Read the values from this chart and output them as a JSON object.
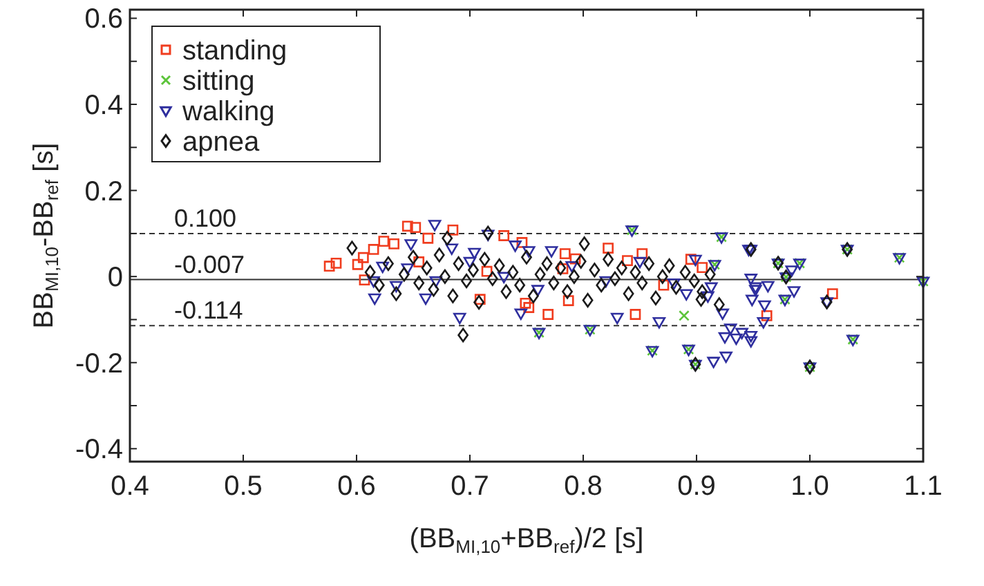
{
  "chart_data": {
    "type": "scatter",
    "xlabel": "(BB$_{MI,10}$+BB$_{ref}$)/2 [s]",
    "ylabel": "BB$_{MI,10}$-BB$_{ref}$ [s]",
    "xlim": [
      0.4,
      1.1
    ],
    "ylim": [
      -0.43,
      0.62
    ],
    "xticks": [
      0.4,
      0.5,
      0.6,
      0.7,
      0.8,
      0.9,
      {
        "value": 1.0,
        "label": "1.0"
      },
      1.1
    ],
    "yticks": [
      -0.4,
      {
        "value": -0.3,
        "label": null
      },
      -0.2,
      {
        "value": -0.1,
        "label": null
      },
      0,
      {
        "value": 0.1,
        "label": null
      },
      0.2,
      {
        "value": 0.3,
        "label": null
      },
      0.4,
      {
        "value": 0.5,
        "label": null
      },
      0.6
    ],
    "grid": false,
    "legend": "top left",
    "ref_lines": [
      {
        "axis": "y",
        "value": 0.1,
        "label": "0.100",
        "line_style": "dashed"
      },
      {
        "axis": "y",
        "value": -0.007,
        "label": "-0.007",
        "line_style": "solid"
      },
      {
        "axis": "y",
        "value": -0.114,
        "label": "-0.114",
        "line_style": "dashed"
      }
    ],
    "series": [
      {
        "name": "standing",
        "color": "#f03c1e",
        "marker": "square",
        "x": [
          0.576,
          0.582,
          0.606,
          0.615,
          0.624,
          0.633,
          0.645,
          0.652,
          0.685,
          0.73,
          0.746,
          0.601,
          0.607,
          0.663,
          0.655,
          0.715,
          0.709,
          0.749,
          0.752,
          0.784,
          0.793,
          0.822,
          0.839,
          0.852,
          0.769,
          0.787,
          0.846,
          0.871,
          0.895,
          0.905,
          0.782,
          1.02,
          0.962
        ],
        "values": [
          0.024,
          0.031,
          0.044,
          0.063,
          0.082,
          0.076,
          0.117,
          0.114,
          0.108,
          0.095,
          0.079,
          0.028,
          -0.008,
          0.089,
          0.034,
          0.012,
          -0.053,
          -0.062,
          -0.072,
          0.053,
          0.041,
          0.066,
          0.037,
          0.053,
          -0.088,
          -0.056,
          -0.088,
          -0.02,
          0.04,
          0.021,
          0.018,
          -0.04,
          -0.091
        ]
      },
      {
        "name": "sitting",
        "color": "#5cc43a",
        "marker": "cross",
        "x": [
          0.972,
          0.991,
          0.979,
          0.978,
          1.033,
          1.079,
          1.1,
          1.038,
          0.922,
          0.861,
          0.893,
          0.889,
          0.899,
          1.0,
          0.916,
          0.843,
          0.761,
          0.806
        ],
        "values": [
          0.031,
          0.031,
          -0.001,
          -0.053,
          0.063,
          0.044,
          -0.011,
          -0.146,
          0.092,
          -0.172,
          -0.169,
          -0.091,
          -0.204,
          -0.21,
          0.028,
          0.108,
          -0.13,
          -0.123
        ]
      },
      {
        "name": "walking",
        "color": "#2e2e9e",
        "marker": "triangle",
        "x": [
          0.948,
          0.972,
          0.991,
          0.984,
          0.979,
          0.948,
          0.952,
          0.963,
          0.986,
          0.978,
          0.949,
          0.96,
          1.015,
          1.033,
          1.079,
          1.1,
          1.038,
          0.948,
          0.959,
          0.843,
          0.922,
          0.946,
          0.761,
          0.806,
          0.861,
          0.893,
          0.926,
          0.752,
          0.772,
          0.916,
          0.913,
          0.923,
          0.891,
          0.867,
          0.935,
          0.948,
          0.83,
          0.952,
          0.899,
          0.669,
          0.716,
          0.74,
          0.691,
          0.616,
          0.661,
          0.745,
          0.704,
          0.648,
          0.623,
          0.635,
          0.684,
          0.899,
          0.915,
          1.0,
          0.615,
          0.645,
          0.67,
          0.7,
          0.73,
          0.76,
          0.79,
          0.82,
          0.85,
          0.88,
          0.91,
          0.93,
          0.94,
          0.925
        ],
        "values": [
          0.063,
          0.031,
          0.031,
          0.015,
          -0.001,
          -0.004,
          -0.024,
          -0.021,
          -0.033,
          -0.053,
          -0.053,
          -0.066,
          -0.059,
          0.063,
          0.044,
          -0.011,
          -0.146,
          -0.137,
          -0.105,
          0.108,
          0.092,
          0.063,
          -0.13,
          -0.123,
          -0.172,
          -0.169,
          -0.185,
          0.06,
          0.06,
          0.028,
          -0.024,
          -0.085,
          -0.04,
          -0.105,
          -0.143,
          -0.149,
          -0.095,
          -0.03,
          0.04,
          0.121,
          0.098,
          0.073,
          -0.095,
          -0.05,
          -0.05,
          -0.085,
          0.056,
          0.076,
          0.024,
          -0.021,
          0.066,
          -0.204,
          -0.197,
          -0.21,
          -0.01,
          0.02,
          -0.01,
          0.035,
          0.0,
          -0.03,
          0.025,
          -0.01,
          0.035,
          -0.015,
          -0.045,
          -0.12,
          -0.13,
          -0.14
        ]
      },
      {
        "name": "apnea",
        "color": "#1a1a1a",
        "marker": "diamond",
        "x": [
          0.596,
          0.694,
          0.68,
          0.716,
          0.801,
          0.904,
          0.612,
          0.62,
          0.628,
          0.635,
          0.642,
          0.65,
          0.655,
          0.662,
          0.668,
          0.673,
          0.678,
          0.685,
          0.69,
          0.697,
          0.703,
          0.708,
          0.713,
          0.72,
          0.726,
          0.732,
          0.738,
          0.744,
          0.75,
          0.756,
          0.762,
          0.768,
          0.774,
          0.78,
          0.786,
          0.792,
          0.798,
          0.804,
          0.81,
          0.816,
          0.822,
          0.828,
          0.834,
          0.84,
          0.846,
          0.852,
          0.858,
          0.864,
          0.87,
          0.876,
          0.882,
          0.89,
          0.898,
          0.905,
          0.912,
          0.92,
          0.948,
          0.972,
          0.979,
          1.015,
          1.033,
          0.899,
          1.0
        ],
        "values": [
          0.066,
          -0.136,
          0.089,
          0.101,
          0.076,
          -0.053,
          0.01,
          -0.02,
          0.03,
          -0.04,
          0.005,
          0.045,
          -0.015,
          0.02,
          -0.03,
          0.05,
          0.0,
          -0.045,
          0.03,
          -0.01,
          0.015,
          -0.06,
          0.04,
          -0.005,
          0.025,
          -0.035,
          0.01,
          -0.02,
          0.045,
          -0.045,
          0.005,
          0.03,
          -0.015,
          0.02,
          -0.035,
          0.0,
          0.035,
          -0.055,
          0.015,
          -0.02,
          0.04,
          -0.005,
          0.02,
          -0.04,
          0.01,
          -0.015,
          0.03,
          -0.05,
          0.0,
          0.025,
          -0.025,
          0.01,
          -0.01,
          -0.035,
          0.005,
          -0.065,
          0.063,
          0.031,
          -0.001,
          -0.059,
          0.063,
          -0.204,
          -0.21
        ]
      }
    ]
  }
}
